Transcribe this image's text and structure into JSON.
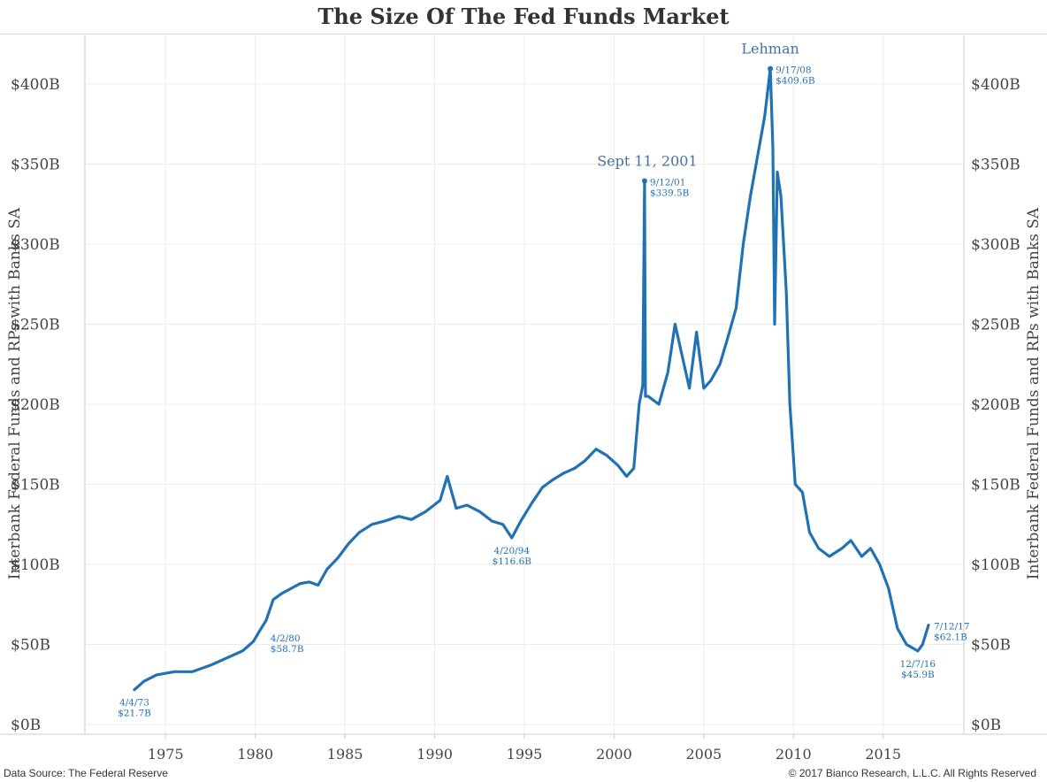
{
  "title": "The Size Of The Fed Funds Market",
  "footer": {
    "source": "Data Source: The Federal Reserve",
    "copyright": "© 2017 Bianco Research, L.L.C. All Rights Reserved"
  },
  "colors": {
    "line": "#2171b5",
    "annotation": "#4a6fa0",
    "grid": "#ececec",
    "axis": "#cccccc"
  },
  "chart_data": {
    "type": "line",
    "title": "The Size Of The Fed Funds Market",
    "ylabel": "Interbank Federal Funds and RPs with Banks SA",
    "ylabel_right": "Interbank Federal Funds and RPs with Banks SA",
    "xlim": [
      1970.5,
      2019.5
    ],
    "ylim": [
      0,
      420
    ],
    "grid": true,
    "x_ticks": [
      1975,
      1980,
      1985,
      1990,
      1995,
      2000,
      2005,
      2010,
      2015
    ],
    "x_tick_labels": [
      "1975",
      "1980",
      "1985",
      "1990",
      "1995",
      "2000",
      "2005",
      "2010",
      "2015"
    ],
    "y_ticks": [
      0,
      50,
      100,
      150,
      200,
      250,
      300,
      350,
      400
    ],
    "y_tick_labels": [
      "$0B",
      "$50B",
      "$100B",
      "$150B",
      "$200B",
      "$250B",
      "$300B",
      "$350B",
      "$400B"
    ],
    "series": [
      {
        "x": [
          1973.26,
          1973.8,
          1974.5,
          1975.5,
          1976.5,
          1977.5,
          1978.5,
          1979.3,
          1979.9,
          1980.25,
          1980.6,
          1981.0,
          1981.5,
          1982.0,
          1982.5,
          1983.0,
          1983.5,
          1984.0,
          1984.6,
          1985.2,
          1985.8,
          1986.5,
          1987.2,
          1988.0,
          1988.7,
          1989.5,
          1990.3,
          1990.7,
          1991.2,
          1991.8,
          1992.5,
          1993.2,
          1993.8,
          1994.3,
          1994.8,
          1995.4,
          1996.0,
          1996.6,
          1997.2,
          1997.8,
          1998.4,
          1999.0,
          1999.6,
          2000.2,
          2000.7,
          2001.1,
          2001.4,
          2001.6,
          2001.7,
          2001.75,
          2001.9,
          2002.5,
          2003.0,
          2003.4,
          2003.8,
          2004.2,
          2004.6,
          2005.0,
          2005.4,
          2005.9,
          2006.3,
          2006.8,
          2007.2,
          2007.6,
          2008.0,
          2008.4,
          2008.71,
          2008.85,
          2008.95,
          2009.1,
          2009.3,
          2009.6,
          2009.8,
          2010.1,
          2010.5,
          2010.9,
          2011.4,
          2012.0,
          2012.7,
          2013.2,
          2013.8,
          2014.3,
          2014.8,
          2015.3,
          2015.8,
          2016.3,
          2016.93,
          2017.2,
          2017.53
        ],
        "y": [
          21.7,
          27,
          31,
          33,
          33,
          37,
          42,
          46,
          52,
          58.7,
          65,
          78,
          82,
          85,
          88,
          89,
          87,
          97,
          104,
          113,
          120,
          125,
          127,
          130,
          128,
          133,
          140,
          155,
          135,
          137,
          133,
          127,
          125,
          116.6,
          127,
          138,
          148,
          153,
          157,
          160,
          165,
          172,
          168,
          162,
          155,
          160,
          200,
          212,
          339.5,
          205,
          205,
          200,
          220,
          250,
          230,
          210,
          245,
          210,
          215,
          225,
          240,
          260,
          300,
          330,
          355,
          380,
          409.6,
          360,
          250,
          345,
          330,
          270,
          200,
          150,
          145,
          120,
          110,
          105,
          110,
          115,
          105,
          110,
          100,
          85,
          60,
          50,
          45.9,
          50,
          62.1
        ]
      }
    ],
    "events": [
      {
        "x": 2001.7,
        "y": 339.5,
        "label": "Sept 11, 2001"
      },
      {
        "x": 2008.71,
        "y": 409.6,
        "label": "Lehman"
      }
    ],
    "annotations": [
      {
        "x": 1973.26,
        "y": 21.7,
        "date": "4/4/73",
        "value": "$21.7B",
        "position": "below"
      },
      {
        "x": 1980.25,
        "y": 58.7,
        "date": "4/2/80",
        "value": "$58.7B",
        "position": "below-right"
      },
      {
        "x": 1994.3,
        "y": 116.6,
        "date": "4/20/94",
        "value": "$116.6B",
        "position": "below"
      },
      {
        "x": 2001.7,
        "y": 339.5,
        "date": "9/12/01",
        "value": "$339.5B",
        "position": "right"
      },
      {
        "x": 2008.71,
        "y": 409.6,
        "date": "9/17/08",
        "value": "$409.6B",
        "position": "right"
      },
      {
        "x": 2016.93,
        "y": 45.9,
        "date": "12/7/16",
        "value": "$45.9B",
        "position": "below"
      },
      {
        "x": 2017.53,
        "y": 62.1,
        "date": "7/12/17",
        "value": "$62.1B",
        "position": "right"
      }
    ]
  }
}
